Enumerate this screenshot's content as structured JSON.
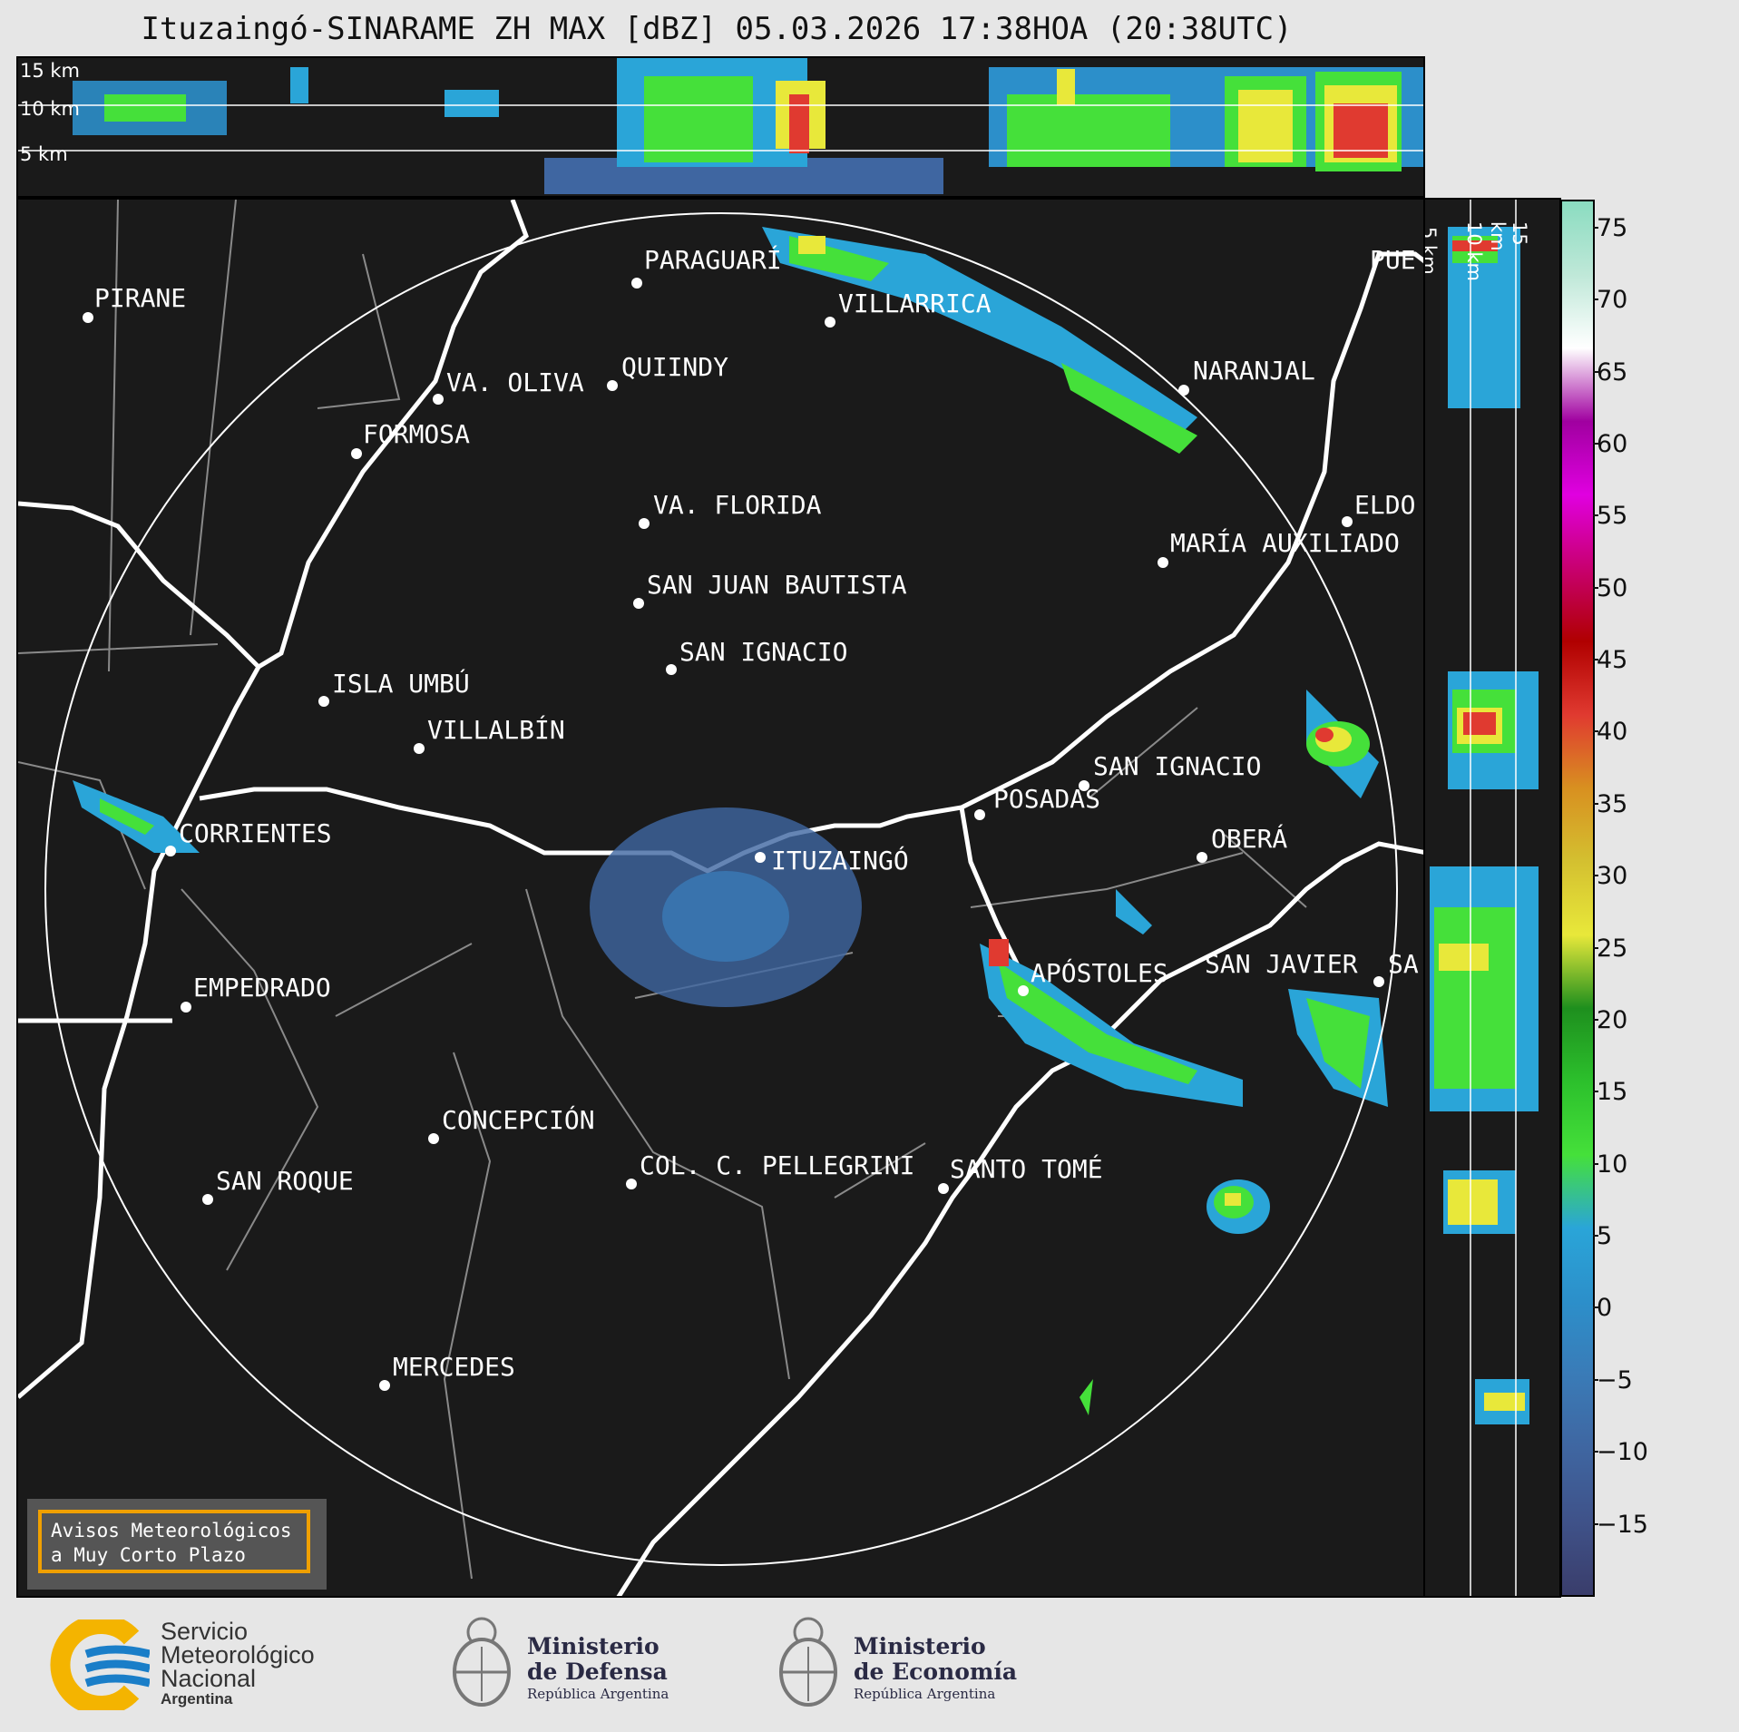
{
  "header": {
    "title": "Ituzaingó-SINARAME ZH MAX [dBZ] 05.03.2026 17:38HOA (20:38UTC)"
  },
  "top_panel": {
    "height_labels": [
      "15 km",
      "10 km",
      "5 km"
    ]
  },
  "side_panel": {
    "height_labels": [
      "5 km",
      "10 km",
      "15 km"
    ]
  },
  "cities": [
    {
      "name": "PIRANE"
    },
    {
      "name": "PARAGUARÍ"
    },
    {
      "name": "VILLARRICA"
    },
    {
      "name": "PUE"
    },
    {
      "name": "VA. OLIVA"
    },
    {
      "name": "QUIINDY"
    },
    {
      "name": "NARANJAL"
    },
    {
      "name": "FORMOSA"
    },
    {
      "name": "VA. FLORIDA"
    },
    {
      "name": "ELDO"
    },
    {
      "name": "MARÍA AUXILIADO"
    },
    {
      "name": "SAN JUAN BAUTISTA"
    },
    {
      "name": "SAN IGNACIO"
    },
    {
      "name": "ISLA UMBÚ"
    },
    {
      "name": "VILLALBÍN"
    },
    {
      "name": "SAN IGNACIO"
    },
    {
      "name": "POSADAS"
    },
    {
      "name": "CORRIENTES"
    },
    {
      "name": "ITUZAINGÓ"
    },
    {
      "name": "OBERÁ"
    },
    {
      "name": "APÓSTOLES"
    },
    {
      "name": "SAN JAVIER"
    },
    {
      "name": "SA"
    },
    {
      "name": "EMPEDRADO"
    },
    {
      "name": "CONCEPCIÓN"
    },
    {
      "name": "COL. C. PELLEGRINI"
    },
    {
      "name": "SANTO TOMÉ"
    },
    {
      "name": "SAN ROQUE"
    },
    {
      "name": "MERCEDES"
    }
  ],
  "colorbar": {
    "ticks": [
      "75",
      "70",
      "65",
      "60",
      "55",
      "50",
      "45",
      "40",
      "35",
      "30",
      "25",
      "20",
      "15",
      "10",
      "5",
      "0",
      "−5",
      "−10",
      "−15"
    ],
    "range": [
      -20,
      77
    ],
    "stops": [
      "#3a3d6b",
      "#3f5289",
      "#3f66a1",
      "#3a7bb7",
      "#2c8fca",
      "#2aa5d8",
      "#45e03a",
      "#2cc02c",
      "#1e8f1e",
      "#e8e83a",
      "#d4c030",
      "#d89020",
      "#e03a30",
      "#b00000",
      "#c80070",
      "#e000e0",
      "#a000a0",
      "#ffffff",
      "#bfe8d8",
      "#8adcc0"
    ]
  },
  "legend": {
    "line1": "Avisos Meteorológicos",
    "line2": "a Muy Corto Plazo"
  },
  "logos": {
    "smn": {
      "line1": "Servicio",
      "line2": "Meteorológico",
      "line3": "Nacional",
      "line4": "Argentina"
    },
    "defensa": {
      "line1": "Ministerio",
      "line2": "de Defensa",
      "line3": "República Argentina"
    },
    "economia": {
      "line1": "Ministerio",
      "line2": "de Economía",
      "line3": "República Argentina"
    }
  },
  "colors": {
    "smn_blue": "#1a7ec8",
    "smn_yellow": "#f4b400",
    "ring": "#ffffff",
    "border": "#888888"
  }
}
